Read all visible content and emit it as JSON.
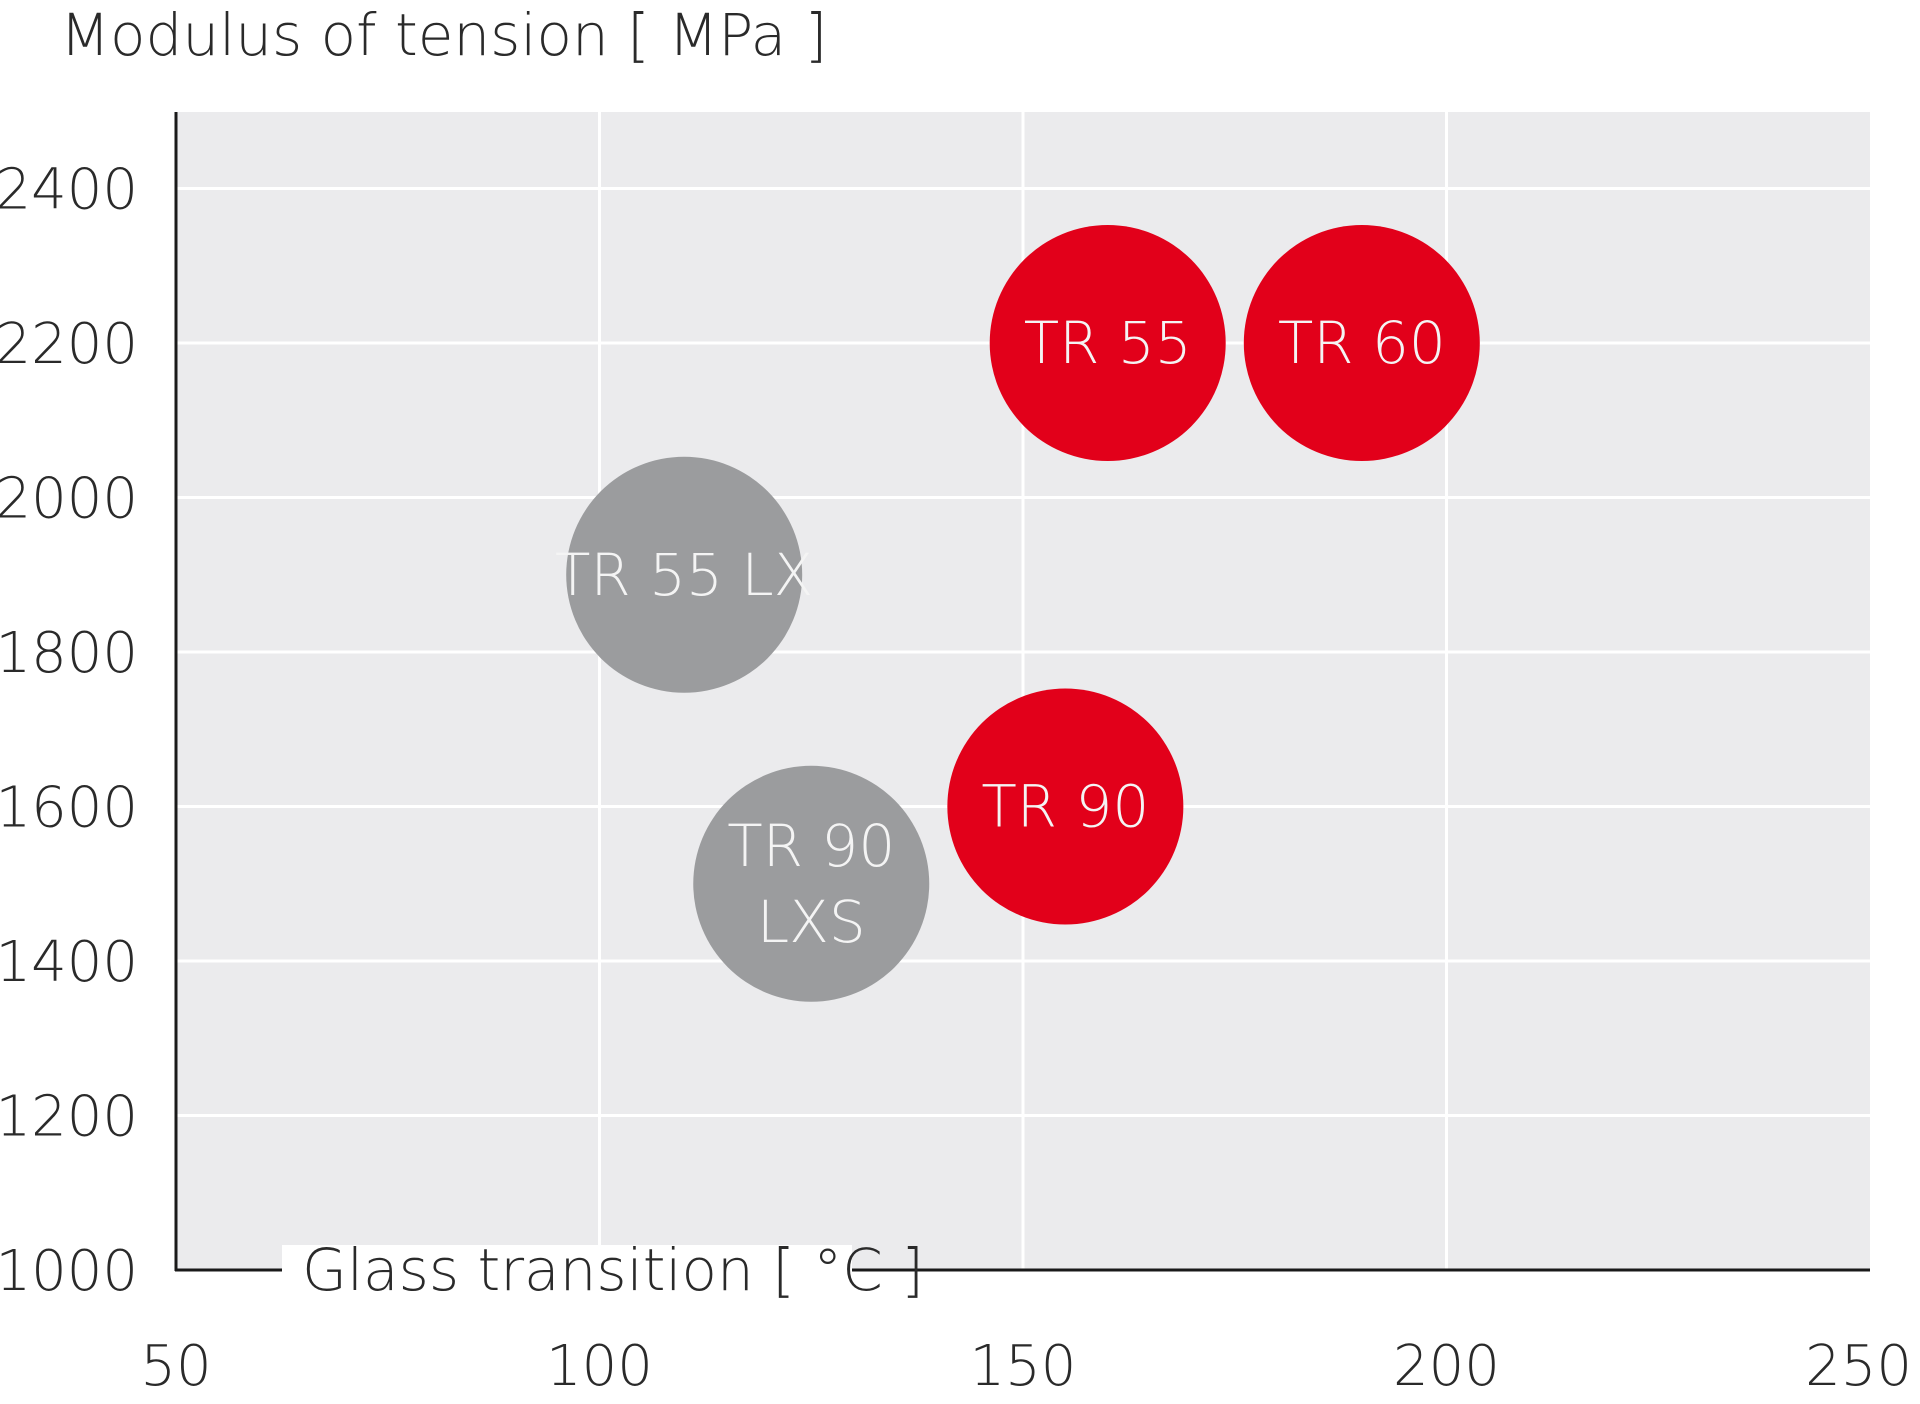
{
  "chart_data": {
    "type": "scatter",
    "title": "",
    "ylabel": "Modulus of tension [ MPa ]",
    "xlabel": "Glass transition [ °C ]",
    "xlim": [
      50,
      250
    ],
    "ylim": [
      1000,
      2500
    ],
    "x_ticks": [
      50,
      100,
      150,
      200,
      250
    ],
    "y_ticks": [
      1000,
      1200,
      1400,
      1600,
      1800,
      2000,
      2200,
      2400
    ],
    "grid": true,
    "colors": {
      "red": "#e2001a",
      "grey": "#9b9c9e",
      "plot_bg": "#ebebed",
      "grid": "#ffffff",
      "axis": "#1a1a1a"
    },
    "points": [
      {
        "label": "TR 55",
        "lines": [
          "TR 55"
        ],
        "x": 160,
        "y": 2200,
        "color": "red"
      },
      {
        "label": "TR 60",
        "lines": [
          "TR 60"
        ],
        "x": 190,
        "y": 2200,
        "color": "red"
      },
      {
        "label": "TR 55 LX",
        "lines": [
          "TR 55 LX"
        ],
        "x": 110,
        "y": 1900,
        "color": "grey"
      },
      {
        "label": "TR 90",
        "lines": [
          "TR 90"
        ],
        "x": 155,
        "y": 1600,
        "color": "red"
      },
      {
        "label": "TR 90 LXS",
        "lines": [
          "TR 90",
          "LXS"
        ],
        "x": 125,
        "y": 1500,
        "color": "grey"
      }
    ]
  }
}
